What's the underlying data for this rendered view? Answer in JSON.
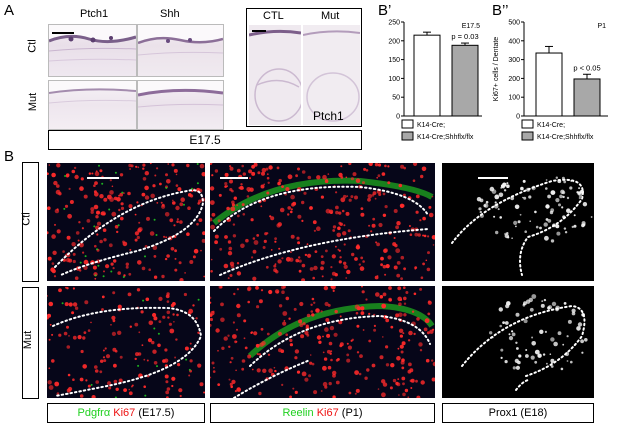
{
  "panels": {
    "a": {
      "letter": "A",
      "col_ptch1": "Ptch1",
      "col_shh": "Shh",
      "col_ctl2": "CTL",
      "col_mut2": "Mut",
      "row_ctl": "Ctl",
      "row_mut": "Mut",
      "inset_label": "Ptch1",
      "stage": "E17.5"
    },
    "b_prime": {
      "letter": "B’"
    },
    "b_double": {
      "letter": "B’’"
    },
    "b": {
      "letter": "B",
      "row_ctl": "Ctl",
      "row_mut": "Mut",
      "caption1": {
        "green": "Pdgfrα",
        "red": "Ki67",
        "rest": "(E17.5)"
      },
      "caption2": {
        "green": "Reelin",
        "red": "Ki67",
        "rest": "(P1)"
      },
      "caption3": "Prox1 (E18)"
    }
  },
  "chart_data": [
    {
      "type": "bar",
      "panel": "B’",
      "categories": [
        "K14-Cre;",
        "K14-Cre;Shhflx/flx"
      ],
      "values": [
        215,
        188
      ],
      "errors": [
        8,
        6
      ],
      "colors": [
        "#ffffff",
        "#a8a8a8"
      ],
      "ylim": [
        0,
        250
      ],
      "yticks": [
        "0",
        "50",
        "100",
        "150",
        "200",
        "250"
      ],
      "annotation": "p = 0.03",
      "corner_label": "E17.5",
      "xlabel": "",
      "ylabel": "",
      "legend": [
        "K14-Cre;",
        "K14-Cre;Shhflx/flx"
      ]
    },
    {
      "type": "bar",
      "panel": "B’’",
      "categories": [
        "K14-Cre;",
        "K14-Cre;Shhflx/flx"
      ],
      "values": [
        335,
        197
      ],
      "errors": [
        35,
        25
      ],
      "colors": [
        "#ffffff",
        "#a8a8a8"
      ],
      "ylim": [
        0,
        500
      ],
      "yticks": [
        "0",
        "100",
        "200",
        "300",
        "400",
        "500"
      ],
      "annotation": "p < 0.05",
      "corner_label": "P1",
      "xlabel": "",
      "ylabel": "Ki67+ cells / Dentate",
      "legend": [
        "K14-Cre;",
        "K14-Cre;Shhflx/flx"
      ]
    }
  ]
}
